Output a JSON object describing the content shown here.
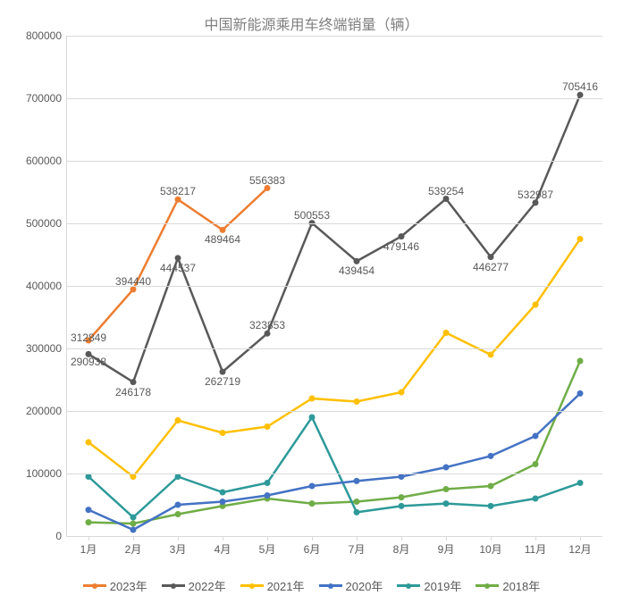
{
  "chart": {
    "type": "line",
    "title": "中国新能源乘用车终端销量（辆）",
    "title_fontsize": 16,
    "title_color": "#808080",
    "background_color": "#ffffff",
    "grid_color": "#d9d9d9",
    "label_color": "#595959",
    "label_fontsize": 12,
    "xlim": [
      1,
      12
    ],
    "ylim": [
      0,
      800000
    ],
    "ytick_step": 100000,
    "yticks": [
      0,
      100000,
      200000,
      300000,
      400000,
      500000,
      600000,
      700000,
      800000
    ],
    "categories": [
      "1月",
      "2月",
      "3月",
      "4月",
      "5月",
      "6月",
      "7月",
      "8月",
      "9月",
      "10月",
      "11月",
      "12月"
    ],
    "line_width": 2.5,
    "marker_size": 5,
    "series": [
      {
        "name": "2023年",
        "color": "#ed7d31",
        "data": [
          312849,
          394440,
          538217,
          489464,
          556383,
          null,
          null,
          null,
          null,
          null,
          null,
          null
        ],
        "show_labels": true
      },
      {
        "name": "2022年",
        "color": "#595959",
        "data": [
          290938,
          246178,
          444537,
          262719,
          323853,
          500553,
          439454,
          479146,
          539254,
          446277,
          532987,
          705416
        ],
        "show_labels": true
      },
      {
        "name": "2021年",
        "color": "#ffc000",
        "data": [
          150000,
          95000,
          185000,
          165000,
          175000,
          220000,
          215000,
          230000,
          325000,
          290000,
          370000,
          475000
        ],
        "show_labels": false
      },
      {
        "name": "2020年",
        "color": "#4472c4",
        "data": [
          42000,
          10000,
          50000,
          55000,
          65000,
          80000,
          88000,
          95000,
          110000,
          128000,
          160000,
          228000
        ],
        "show_labels": false
      },
      {
        "name": "2019年",
        "color": "#2e9999",
        "data": [
          95000,
          30000,
          95000,
          70000,
          85000,
          190000,
          38000,
          48000,
          52000,
          48000,
          60000,
          85000
        ],
        "show_labels": false
      },
      {
        "name": "2018年",
        "color": "#70ad47",
        "data": [
          22000,
          20000,
          35000,
          48000,
          60000,
          52000,
          55000,
          62000,
          75000,
          80000,
          115000,
          280000
        ],
        "show_labels": false
      }
    ],
    "legend_position": "bottom",
    "data_label_adjustments": {
      "312849": {
        "dy": 4
      },
      "290938": {
        "dy": 16
      },
      "246178": {
        "dy": 18
      },
      "394440": {
        "dy": -2
      },
      "444537": {
        "dy": 18
      },
      "262719": {
        "dy": 18
      },
      "538217": {
        "dy": -2
      },
      "489464": {
        "dy": 18
      },
      "323853": {
        "dy": -2
      },
      "556383": {
        "dy": -2
      },
      "500553": {
        "dy": -2
      },
      "439454": {
        "dy": 18
      },
      "479146": {
        "dy": 18
      },
      "539254": {
        "dy": -2
      },
      "446277": {
        "dy": 18
      },
      "532987": {
        "dy": -2
      },
      "705416": {
        "dy": -2
      }
    }
  }
}
